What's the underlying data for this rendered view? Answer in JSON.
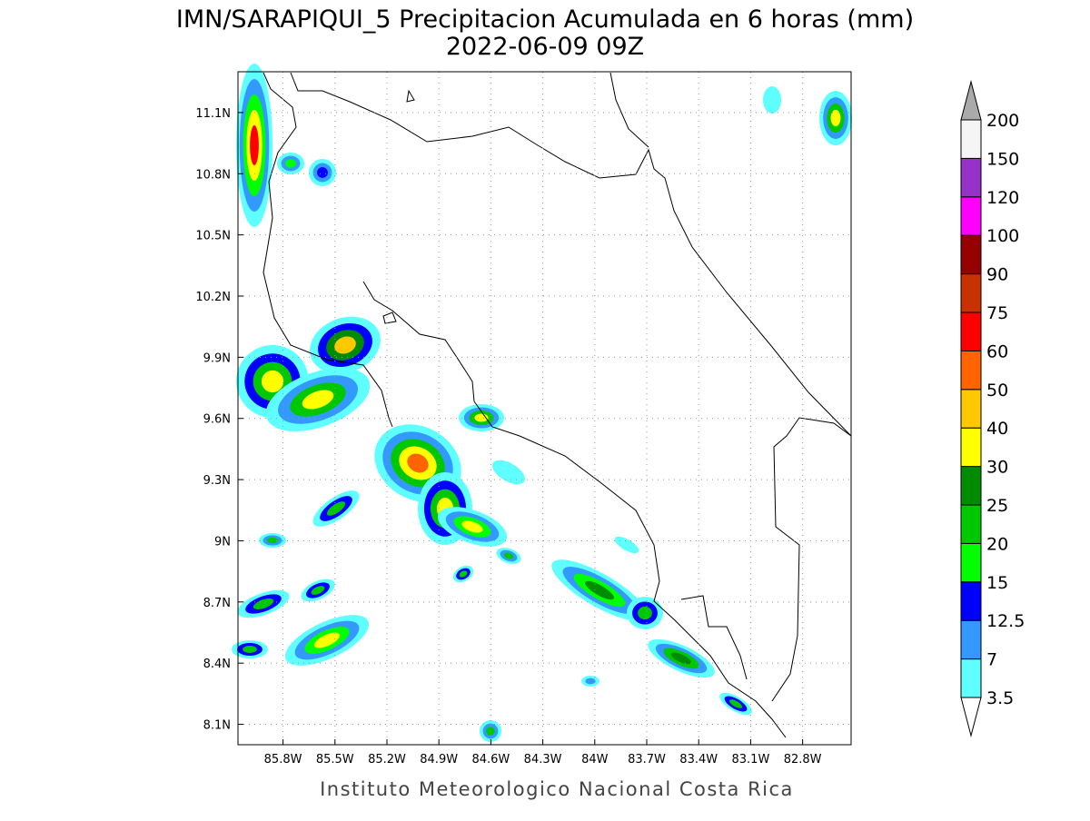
{
  "title": "IMN/SARAPIQUI_5 Precipitacion Acumulada en 6 horas (mm)",
  "subtitle": "2022-06-09 09Z",
  "footer": "Instituto Meteorologico Nacional Costa Rica",
  "map": {
    "xlim": [
      -86.06,
      -82.52
    ],
    "ylim": [
      8.0,
      11.3
    ],
    "xticks": [
      {
        "value": -85.8,
        "label": "85.8W"
      },
      {
        "value": -85.5,
        "label": "85.5W"
      },
      {
        "value": -85.2,
        "label": "85.2W"
      },
      {
        "value": -84.9,
        "label": "84.9W"
      },
      {
        "value": -84.6,
        "label": "84.6W"
      },
      {
        "value": -84.3,
        "label": "84.3W"
      },
      {
        "value": -84,
        "label": "84W"
      },
      {
        "value": -83.7,
        "label": "83.7W"
      },
      {
        "value": -83.4,
        "label": "83.4W"
      },
      {
        "value": -83.1,
        "label": "83.1W"
      },
      {
        "value": -82.8,
        "label": "82.8W"
      }
    ],
    "yticks": [
      {
        "value": 8.1,
        "label": "8.1N"
      },
      {
        "value": 8.4,
        "label": "8.4N"
      },
      {
        "value": 8.7,
        "label": "8.7N"
      },
      {
        "value": 9,
        "label": "9N"
      },
      {
        "value": 9.3,
        "label": "9.3N"
      },
      {
        "value": 9.6,
        "label": "9.6N"
      },
      {
        "value": 9.9,
        "label": "9.9N"
      },
      {
        "value": 10.2,
        "label": "10.2N"
      },
      {
        "value": 10.5,
        "label": "10.5N"
      },
      {
        "value": 10.8,
        "label": "10.8N"
      },
      {
        "value": 11.1,
        "label": "11.1N"
      }
    ],
    "grid": true
  },
  "legend": {
    "levels": [
      3.5,
      7,
      12.5,
      15,
      20,
      25,
      30,
      40,
      50,
      60,
      75,
      90,
      100,
      120,
      150,
      200
    ],
    "colors": [
      "#5fffff",
      "#3399ff",
      "#0000ff",
      "#00ff00",
      "#00c800",
      "#008c00",
      "#ffff00",
      "#ffc800",
      "#ff6400",
      "#ff0000",
      "#c83200",
      "#960000",
      "#ff00ff",
      "#9632c8",
      "#f5f5f5"
    ],
    "below_color": "#ffffff",
    "above_color": "#aaaaaa"
  }
}
